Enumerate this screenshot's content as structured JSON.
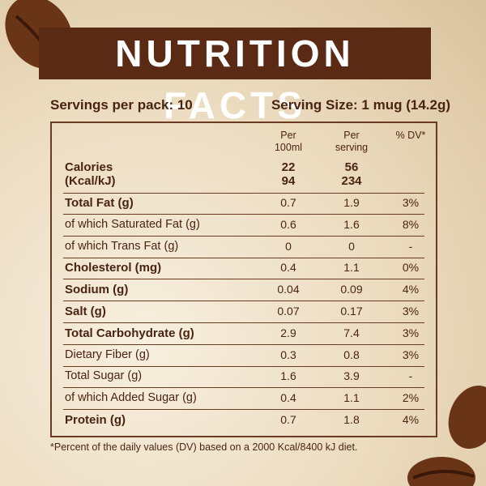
{
  "title": "NUTRITION FACTS",
  "servings_per_pack": "Servings per pack: 10",
  "serving_size": "Serving Size: 1 mug (14.2g)",
  "table": {
    "header": {
      "per_100ml": [
        "Per",
        "100ml"
      ],
      "per_serving": [
        "Per",
        "serving"
      ],
      "dv": "% DV*"
    },
    "calories": {
      "label": [
        "Calories",
        "(Kcal/kJ)"
      ],
      "per_100ml": [
        "22",
        "94"
      ],
      "per_serving": [
        "56",
        "234"
      ]
    },
    "rows": [
      {
        "label": "Total Fat (g)",
        "per_100ml": "0.7",
        "per_serving": "1.9",
        "dv": "3%",
        "bold": true
      },
      {
        "label": "of which Saturated Fat (g)",
        "per_100ml": "0.6",
        "per_serving": "1.6",
        "dv": "8%",
        "bold": false
      },
      {
        "label": "of which Trans Fat (g)",
        "per_100ml": "0",
        "per_serving": "0",
        "dv": "-",
        "bold": false
      },
      {
        "label": "Cholesterol (mg)",
        "per_100ml": "0.4",
        "per_serving": "1.1",
        "dv": "0%",
        "bold": true
      },
      {
        "label": "Sodium (g)",
        "per_100ml": "0.04",
        "per_serving": "0.09",
        "dv": "4%",
        "bold": true
      },
      {
        "label": "Salt (g)",
        "per_100ml": "0.07",
        "per_serving": "0.17",
        "dv": "3%",
        "bold": true
      },
      {
        "label": "Total Carbohydrate (g)",
        "per_100ml": "2.9",
        "per_serving": "7.4",
        "dv": "3%",
        "bold": true
      },
      {
        "label": "Dietary Fiber (g)",
        "per_100ml": "0.3",
        "per_serving": "0.8",
        "dv": "3%",
        "bold": false
      },
      {
        "label": "Total Sugar (g)",
        "per_100ml": "1.6",
        "per_serving": "3.9",
        "dv": "-",
        "bold": false
      },
      {
        "label": "of which Added Sugar (g)",
        "per_100ml": "0.4",
        "per_serving": "1.1",
        "dv": "2%",
        "bold": false
      },
      {
        "label": "Protein (g)",
        "per_100ml": "0.7",
        "per_serving": "1.8",
        "dv": "4%",
        "bold": true
      }
    ]
  },
  "footnote": "*Percent of the daily values (DV) based on a 2000 Kcal/8400 kJ diet."
}
